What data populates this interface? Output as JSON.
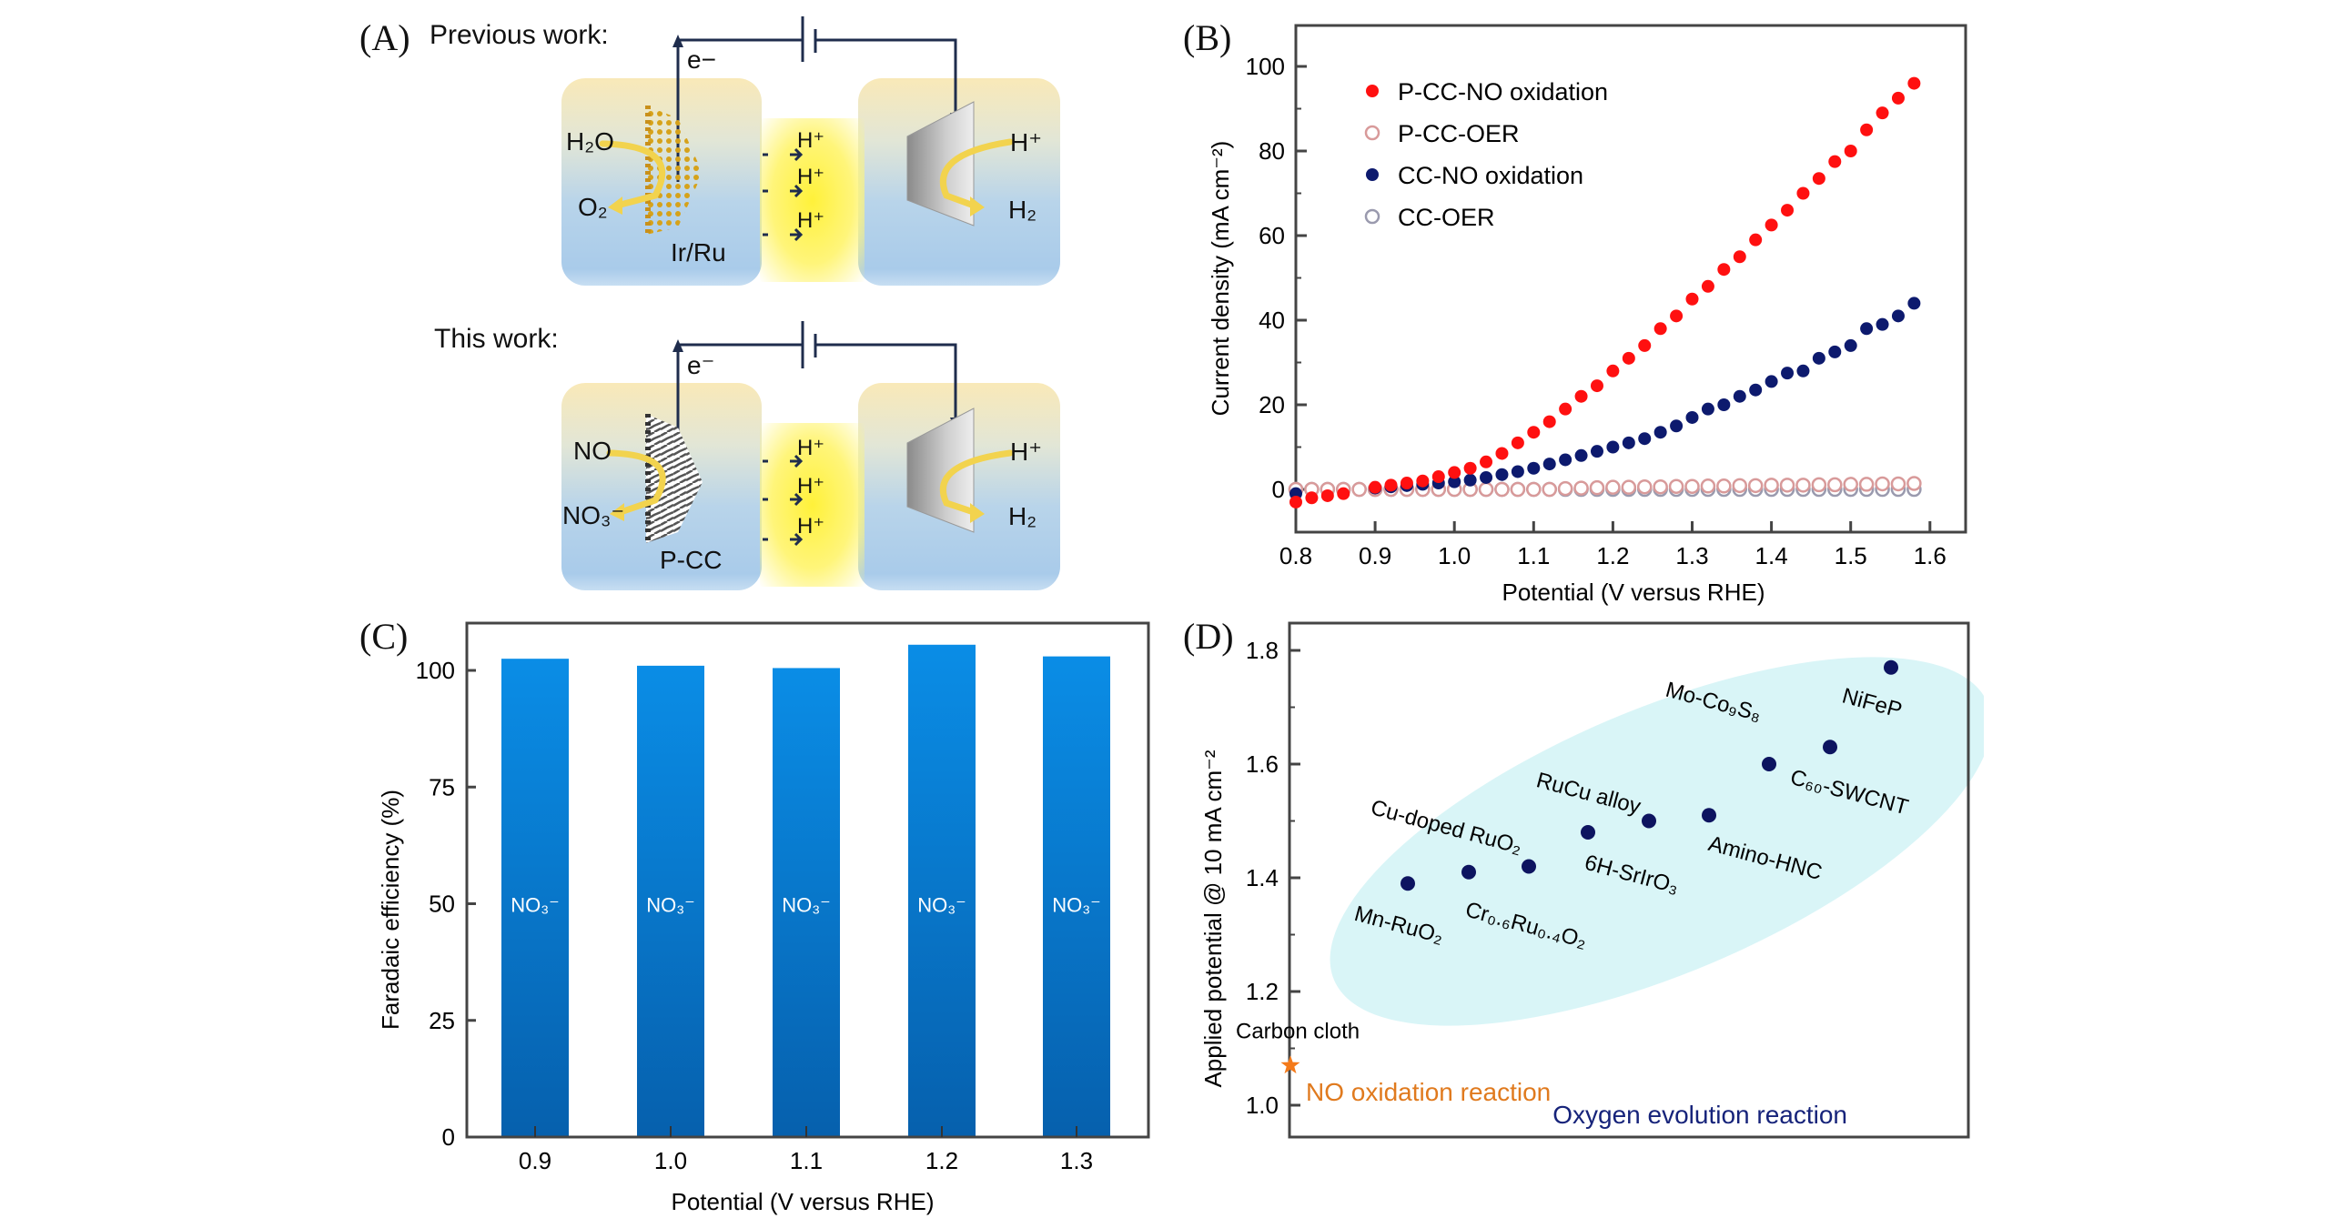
{
  "panel_a": {
    "label": "(A)",
    "previous": {
      "title": "Previous work:",
      "electron": "e−",
      "reactant": "H₂O",
      "product": "O₂",
      "catalyst": "Ir/Ru",
      "proton_transfer": [
        "H⁺",
        "H⁺",
        "H⁺"
      ],
      "cathode_reactant": "H⁺",
      "cathode_product": "H₂"
    },
    "current": {
      "title": "This work:",
      "electron": "e⁻",
      "reactant": "NO",
      "product": "NO₃⁻",
      "catalyst": "P-CC",
      "proton_transfer": [
        "H⁺",
        "H⁺",
        "H⁺"
      ],
      "cathode_reactant": "H⁺",
      "cathode_product": "H₂"
    },
    "colors": {
      "wire": "#1f2d4d",
      "arrow": "#f2d34e",
      "catalyst_dots": "#d6a21a",
      "membrane": "#fff23a"
    }
  },
  "chart_data": [
    {
      "panel": "(B)",
      "type": "scatter",
      "title": "",
      "xlabel": "Potential (V versus RHE)",
      "ylabel": "Current density (mA cm⁻²)",
      "xlim": [
        0.8,
        1.65
      ],
      "ylim": [
        -10,
        110
      ],
      "xticks": [
        0.8,
        0.9,
        1.0,
        1.1,
        1.2,
        1.3,
        1.4,
        1.5,
        1.6
      ],
      "xtick_labels": [
        "0.8",
        "0.9",
        "1.0",
        "1.1",
        "1.2",
        "1.3",
        "1.4",
        "1.5",
        "1.6"
      ],
      "yticks": [
        0,
        20,
        40,
        60,
        80,
        100
      ],
      "ytick_labels": [
        "0",
        "20",
        "40",
        "60",
        "80",
        "100"
      ],
      "legend_position": "top-left",
      "x": [
        0.8,
        0.82,
        0.84,
        0.86,
        0.88,
        0.9,
        0.92,
        0.94,
        0.96,
        0.98,
        1.0,
        1.02,
        1.04,
        1.06,
        1.08,
        1.1,
        1.12,
        1.14,
        1.16,
        1.18,
        1.2,
        1.22,
        1.24,
        1.26,
        1.28,
        1.3,
        1.32,
        1.34,
        1.36,
        1.38,
        1.4,
        1.42,
        1.44,
        1.46,
        1.48,
        1.5,
        1.52,
        1.54,
        1.56,
        1.58
      ],
      "series": [
        {
          "name": "P-CC-NO oxidation",
          "marker": "filled",
          "color": "#ff1010",
          "values": [
            -3,
            -2,
            -1.5,
            -1,
            null,
            0.5,
            1,
            1.5,
            2,
            3,
            4,
            5,
            6.5,
            8.5,
            11,
            13.5,
            16,
            19,
            22,
            24.5,
            28,
            31,
            34,
            38,
            41,
            45,
            48,
            52,
            55,
            59,
            62.5,
            66,
            70,
            73.5,
            77.5,
            80,
            85,
            89,
            92.5,
            96
          ]
        },
        {
          "name": "P-CC-OER",
          "marker": "open",
          "color": "#d89a9a",
          "values": [
            0,
            0,
            0,
            0,
            0,
            0,
            0,
            0,
            0,
            0,
            0,
            0,
            0,
            0,
            0,
            0,
            0,
            0.2,
            0.3,
            0.4,
            0.5,
            0.5,
            0.6,
            0.6,
            0.7,
            0.7,
            0.8,
            0.8,
            0.9,
            0.9,
            1,
            1,
            1,
            1.1,
            1.1,
            1.2,
            1.2,
            1.3,
            1.3,
            1.4
          ]
        },
        {
          "name": "CC-NO oxidation",
          "marker": "filled",
          "color": "#0d1a6e",
          "values": [
            -1,
            null,
            null,
            null,
            null,
            0.3,
            0.6,
            0.9,
            1.2,
            1.5,
            1.8,
            2.2,
            2.8,
            3.5,
            4.2,
            5,
            6,
            7,
            8,
            9,
            10,
            11,
            12,
            13.5,
            15,
            17,
            19,
            20,
            22,
            23.5,
            25.5,
            27.5,
            28,
            31,
            32.5,
            34,
            38,
            39,
            41,
            44
          ]
        },
        {
          "name": "CC-OER",
          "marker": "open",
          "color": "#9a9aae",
          "values": [
            0,
            0,
            0,
            0,
            0,
            0,
            0,
            0,
            0,
            0,
            0,
            0,
            0,
            0,
            0,
            0,
            0,
            0,
            0,
            0,
            0,
            0,
            0,
            0,
            0,
            0,
            0,
            0,
            0,
            0,
            0,
            0,
            0,
            0,
            0,
            0,
            0,
            0,
            0,
            0
          ]
        }
      ]
    },
    {
      "panel": "(C)",
      "type": "bar",
      "title": "",
      "xlabel": "Potential (V versus RHE)",
      "ylabel": "Faradaic efficiency (%)",
      "categories": [
        "0.9",
        "1.0",
        "1.1",
        "1.2",
        "1.3"
      ],
      "values": [
        102.5,
        101,
        100.5,
        105.5,
        103
      ],
      "bar_label": "NO₃⁻",
      "ylim": [
        0,
        110
      ],
      "yticks": [
        0,
        25,
        50,
        75,
        100
      ],
      "ytick_labels": [
        "0",
        "25",
        "50",
        "75",
        "100"
      ],
      "color_top": "#0a8de6",
      "color_bottom": "#0660ad"
    },
    {
      "panel": "(D)",
      "type": "scatter",
      "title": "",
      "xlabel": "",
      "ylabel": "Applied potential @ 10 mA cm⁻²",
      "ylim": [
        0.95,
        1.85
      ],
      "yticks": [
        1.0,
        1.2,
        1.4,
        1.6,
        1.8
      ],
      "ytick_labels": [
        "1.0",
        "1.2",
        "1.4",
        "1.6",
        "1.8"
      ],
      "points": [
        {
          "label": "Mn-RuO₂",
          "y": 1.39,
          "group": "OER"
        },
        {
          "label": "Cr₀.₆Ru₀.₄O₂",
          "y": 1.41,
          "group": "OER"
        },
        {
          "label": "Cu-doped RuO₂",
          "y": 1.42,
          "group": "OER"
        },
        {
          "label": "6H-SrIrO₃",
          "y": 1.48,
          "group": "OER"
        },
        {
          "label": "RuCu alloy",
          "y": 1.5,
          "group": "OER"
        },
        {
          "label": "Amino-HNC",
          "y": 1.51,
          "group": "OER"
        },
        {
          "label": "Mo-Co₉S₈",
          "y": 1.6,
          "group": "OER"
        },
        {
          "label": "C₆₀-SWCNT",
          "y": 1.63,
          "group": "OER"
        },
        {
          "label": "NiFeP",
          "y": 1.77,
          "group": "OER"
        },
        {
          "label": "Carbon cloth",
          "y": 1.07,
          "group": "NO"
        }
      ],
      "annotations": {
        "oer": "Oxygen evolution reaction",
        "no": "NO oxidation reaction"
      },
      "colors": {
        "oer_point": "#0d1460",
        "oer_text": "#16237a",
        "no_point": "#f47a1a",
        "no_text": "#e07a1e",
        "ellipse": "#d9f5f7"
      }
    }
  ]
}
